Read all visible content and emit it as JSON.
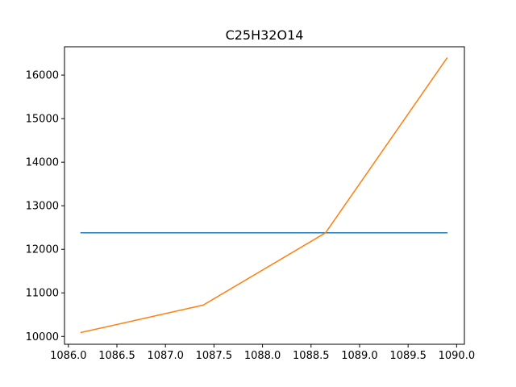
{
  "chart_data": {
    "type": "line",
    "title": "C25H32O14",
    "xlabel": "",
    "ylabel": "",
    "xlim": [
      1085.96,
      1090.08
    ],
    "ylim": [
      9820,
      16650
    ],
    "x_ticks": [
      1086.0,
      1086.5,
      1087.0,
      1087.5,
      1088.0,
      1088.5,
      1089.0,
      1089.5,
      1090.0
    ],
    "x_tick_labels": [
      "1086.0",
      "1086.5",
      "1087.0",
      "1087.5",
      "1088.0",
      "1088.5",
      "1089.0",
      "1089.5",
      "1090.0"
    ],
    "y_ticks": [
      10000,
      11000,
      12000,
      13000,
      14000,
      15000,
      16000
    ],
    "y_tick_labels": [
      "10000",
      "11000",
      "12000",
      "13000",
      "14000",
      "15000",
      "16000"
    ],
    "grid": false,
    "series": [
      {
        "color": "#1f77b4",
        "x": [
          1086.13,
          1089.9
        ],
        "y": [
          12380,
          12380
        ]
      },
      {
        "color": "#ff7f0e",
        "x": [
          1086.13,
          1087.39,
          1088.65,
          1089.9
        ],
        "y": [
          10090,
          10720,
          12380,
          16390
        ]
      }
    ]
  }
}
